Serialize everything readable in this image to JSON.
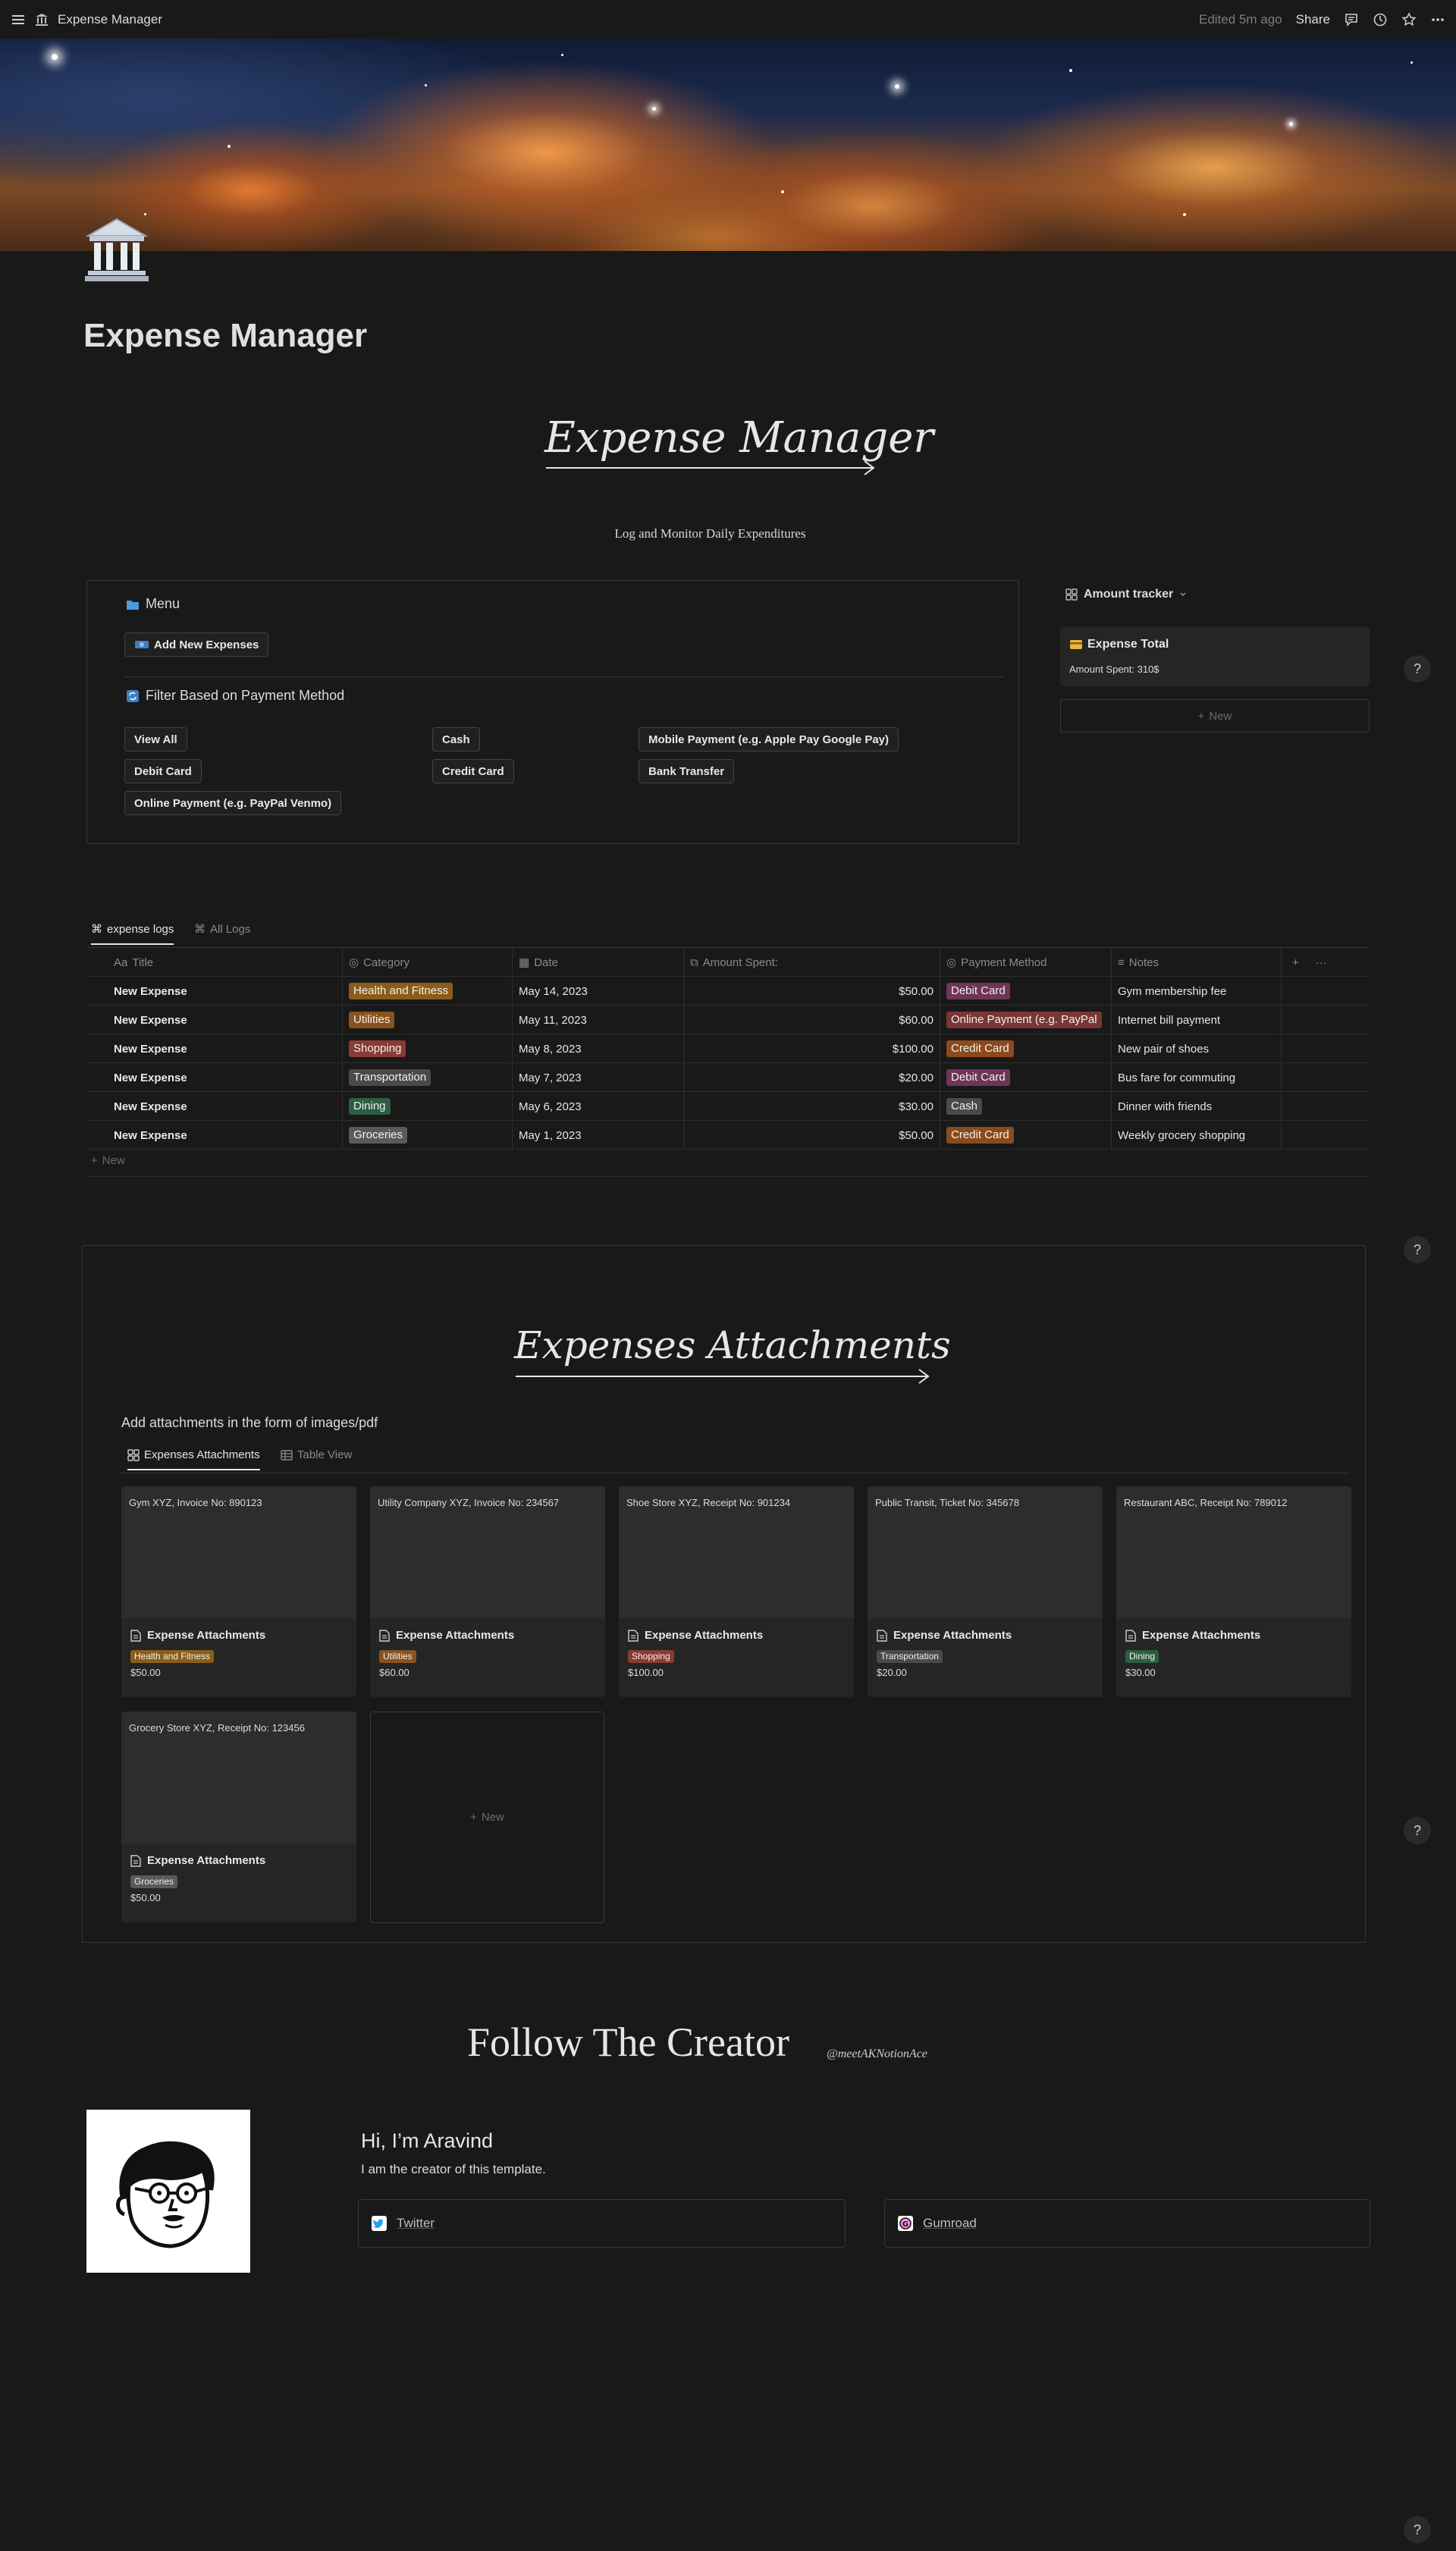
{
  "topbar": {
    "breadcrumb": "Expense Manager",
    "edited": "Edited 5m ago",
    "share": "Share"
  },
  "page": {
    "title": "Expense Manager",
    "hero_title": "Expense Manager",
    "tagline": "Log and Monitor Daily Expenditures"
  },
  "menu": {
    "heading": "Menu",
    "add_button": "Add New Expenses",
    "filter_heading": "Filter Based on Payment Method",
    "filters": [
      "View All",
      "Cash",
      "Mobile Payment (e.g. Apple Pay Google Pay)",
      "Debit Card",
      "Credit Card",
      "Bank Transfer",
      "Online Payment (e.g. PayPal Venmo)"
    ]
  },
  "tracker": {
    "heading": "Amount tracker",
    "card_title": "Expense Total",
    "card_value": "Amount Spent: 310$",
    "new_label": "New"
  },
  "logs": {
    "tabs": [
      "expense logs",
      "All Logs"
    ],
    "columns": [
      "Title",
      "Category",
      "Date",
      "Amount Spent:",
      "Payment Method",
      "Notes"
    ],
    "rows": [
      {
        "title": "New Expense",
        "category": "Health and Fitness",
        "date": "May 14, 2023",
        "amount": "$50.00",
        "method": "Debit Card",
        "notes": "Gym membership fee"
      },
      {
        "title": "New Expense",
        "category": "Utilities",
        "date": "May 11, 2023",
        "amount": "$60.00",
        "method": "Online Payment (e.g. PayPal",
        "notes": "Internet bill payment"
      },
      {
        "title": "New Expense",
        "category": "Shopping",
        "date": "May 8, 2023",
        "amount": "$100.00",
        "method": "Credit Card",
        "notes": "New pair of shoes"
      },
      {
        "title": "New Expense",
        "category": "Transportation",
        "date": "May 7, 2023",
        "amount": "$20.00",
        "method": "Debit Card",
        "notes": "Bus fare for commuting"
      },
      {
        "title": "New Expense",
        "category": "Dining",
        "date": "May 6, 2023",
        "amount": "$30.00",
        "method": "Cash",
        "notes": "Dinner with friends"
      },
      {
        "title": "New Expense",
        "category": "Groceries",
        "date": "May 1, 2023",
        "amount": "$50.00",
        "method": "Credit Card",
        "notes": "Weekly grocery shopping"
      }
    ],
    "new_label": "New"
  },
  "colors": {
    "Health and Fitness": "#8a5e1a",
    "Utilities": "#89521e",
    "Shopping": "#8a3b33",
    "Transportation": "#4a4a4a",
    "Dining": "#2c5e42",
    "Groceries": "#5a5a5a",
    "Debit Card": "#6e3558",
    "Online Payment (e.g. PayPal": "#7a3535",
    "Credit Card": "#8c4a1c",
    "Cash": "#4a4a4a"
  },
  "attachments": {
    "title": "Expenses Attachments",
    "description": "Add attachments in the form of images/pdf",
    "tabs": [
      "Expenses Attachments",
      "Table View"
    ],
    "cards": [
      {
        "text": "Gym XYZ, Invoice No: 890123",
        "title": "Expense Attachments",
        "tag": "Health and Fitness",
        "amount": "$50.00"
      },
      {
        "text": "Utility Company XYZ, Invoice No: 234567",
        "title": "Expense Attachments",
        "tag": "Utilities",
        "amount": "$60.00"
      },
      {
        "text": "Shoe Store XYZ, Receipt No: 901234",
        "title": "Expense Attachments",
        "tag": "Shopping",
        "amount": "$100.00"
      },
      {
        "text": "Public Transit, Ticket No: 345678",
        "title": "Expense Attachments",
        "tag": "Transportation",
        "amount": "$20.00"
      },
      {
        "text": "Restaurant ABC, Receipt No: 789012",
        "title": "Expense Attachments",
        "tag": "Dining",
        "amount": "$30.00"
      },
      {
        "text": "Grocery Store XYZ, Receipt No: 123456",
        "title": "Expense Attachments",
        "tag": "Groceries",
        "amount": "$50.00"
      }
    ],
    "new_label": "New"
  },
  "follow": {
    "title": "Follow The Creator",
    "handle": "@meetAKNotionAce",
    "greeting": "Hi, I’m Aravind",
    "creator": "I am the creator of this template.",
    "links": [
      "Twitter",
      "Gumroad"
    ]
  },
  "help": "?"
}
